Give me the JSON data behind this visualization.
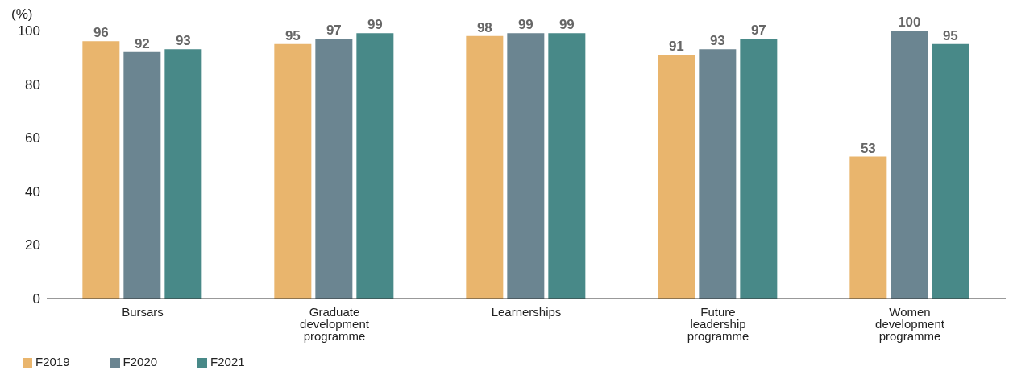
{
  "chart_data": {
    "type": "bar",
    "ylabel": "(%)",
    "categories": [
      "Bursars",
      "Graduate development programme",
      "Learnerships",
      "Future leadership programme",
      "Women development programme"
    ],
    "series": [
      {
        "name": "F2019",
        "color": "#e9b56d",
        "values": [
          96,
          95,
          98,
          91,
          53
        ]
      },
      {
        "name": "F2020",
        "color": "#6b8591",
        "values": [
          92,
          97,
          99,
          93,
          100
        ]
      },
      {
        "name": "F2021",
        "color": "#488988",
        "values": [
          93,
          99,
          99,
          97,
          95
        ]
      }
    ],
    "ylim": [
      0,
      100
    ],
    "yticks": [
      0,
      20,
      40,
      60,
      80,
      100
    ],
    "grid": false,
    "legend": "bottom left",
    "data_labels": true
  }
}
